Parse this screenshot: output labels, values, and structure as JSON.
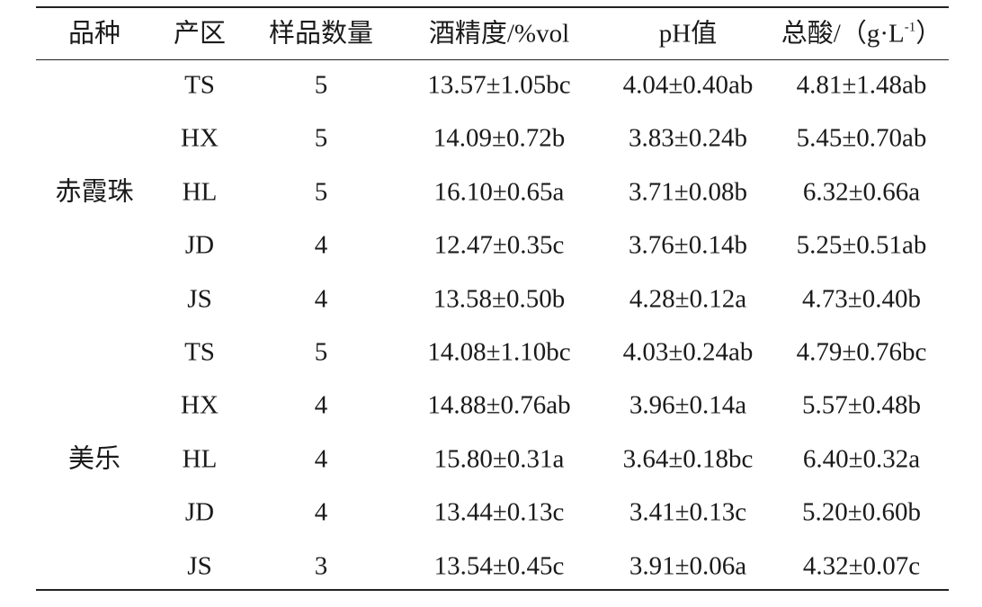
{
  "table": {
    "columns": [
      "品种",
      "产区",
      "样品数量",
      "酒精度/%vol",
      "pH值",
      {
        "text": "总酸/（g·L",
        "sup": "-1",
        "close": "）"
      }
    ],
    "groups": [
      {
        "label": "赤霞珠",
        "rows": [
          [
            "TS",
            5,
            "13.57±1.05bc",
            "4.04±0.40ab",
            "4.81±1.48ab"
          ],
          [
            "HX",
            5,
            "14.09±0.72b",
            "3.83±0.24b",
            "5.45±0.70ab"
          ],
          [
            "HL",
            5,
            "16.10±0.65a",
            "3.71±0.08b",
            "6.32±0.66a"
          ],
          [
            "JD",
            4,
            "12.47±0.35c",
            "3.76±0.14b",
            "5.25±0.51ab"
          ],
          [
            "JS",
            4,
            "13.58±0.50b",
            "4.28±0.12a",
            "4.73±0.40b"
          ]
        ]
      },
      {
        "label": "美乐",
        "rows": [
          [
            "TS",
            5,
            "14.08±1.10bc",
            "4.03±0.24ab",
            "4.79±0.76bc"
          ],
          [
            "HX",
            4,
            "14.88±0.76ab",
            "3.96±0.14a",
            "5.57±0.48b"
          ],
          [
            "HL",
            4,
            "15.80±0.31a",
            "3.64±0.18bc",
            "6.40±0.32a"
          ],
          [
            "JD",
            4,
            "13.44±0.13c",
            "3.41±0.13c",
            "5.20±0.60b"
          ],
          [
            "JS",
            3,
            "13.54±0.45c",
            "3.91±0.06a",
            "4.32±0.07c"
          ]
        ]
      }
    ]
  }
}
